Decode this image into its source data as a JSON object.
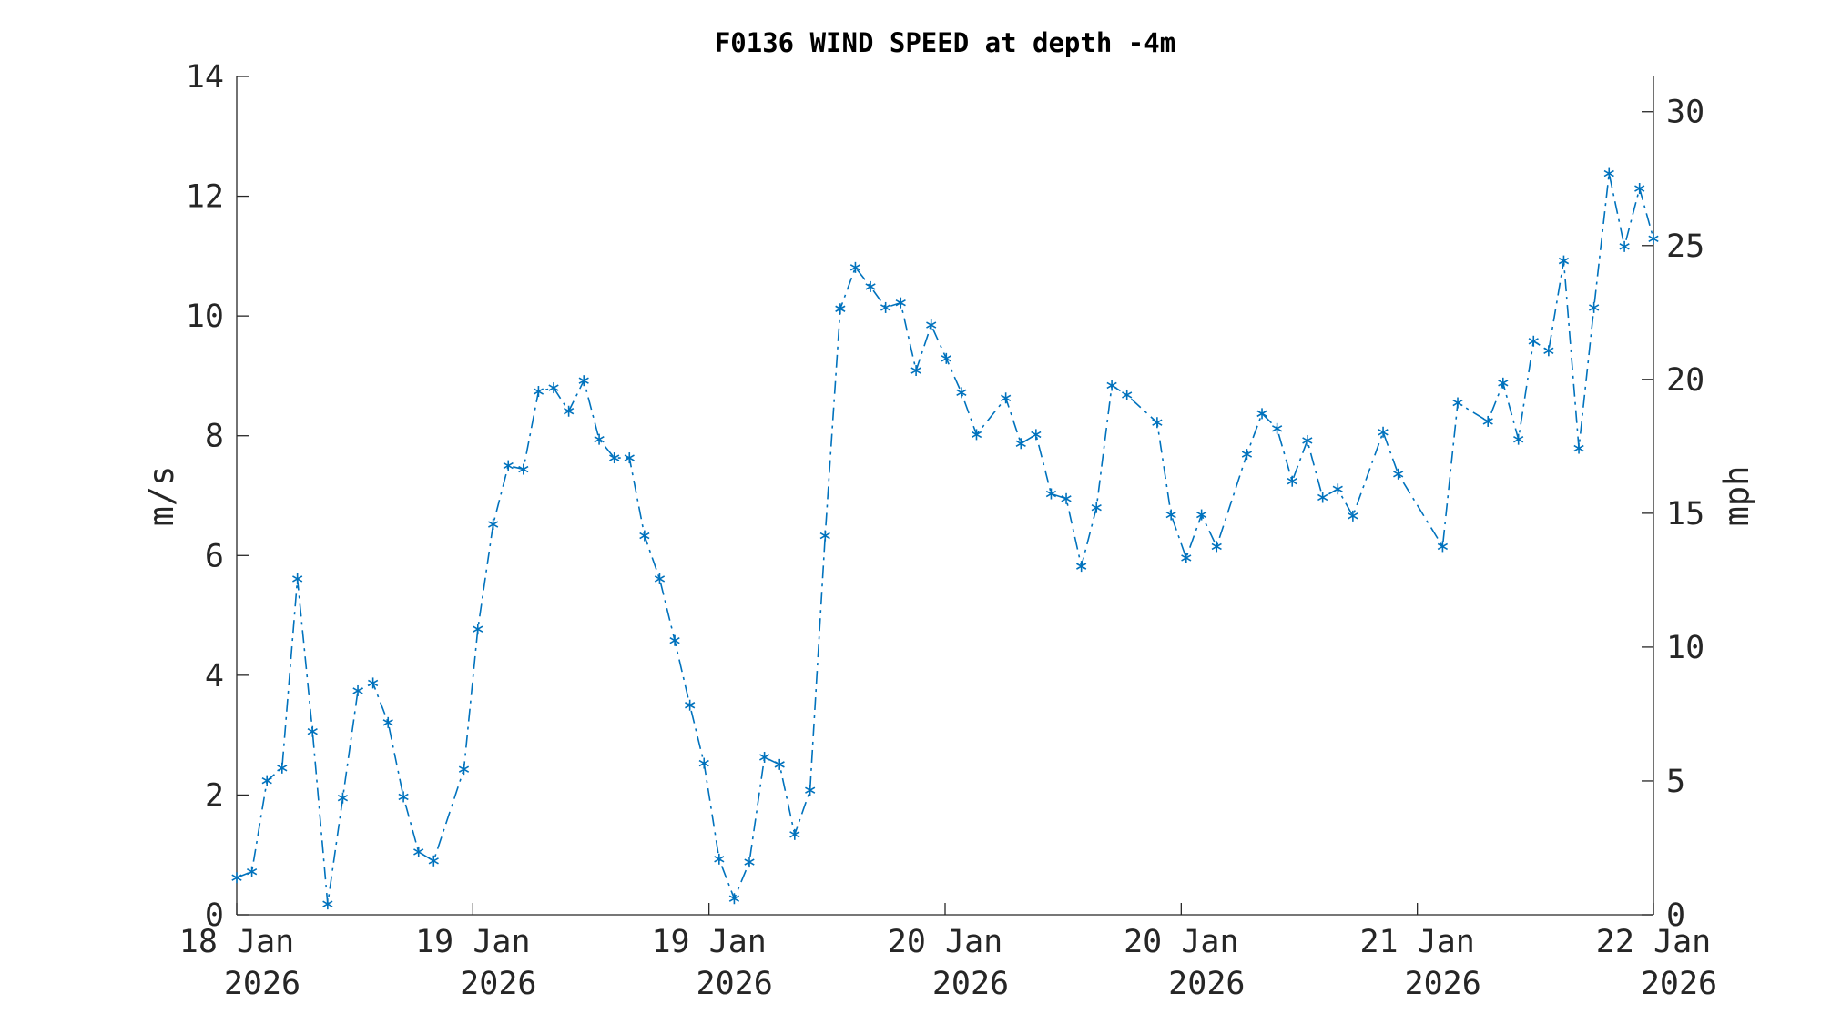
{
  "chart_data": {
    "type": "line",
    "title": "F0136 WIND SPEED at depth -4m",
    "ylabel": "m/s",
    "y2label": "mph",
    "xlim": [
      0,
      6
    ],
    "xticks": [
      {
        "value": 0,
        "label": [
          "18 Jan",
          "2026"
        ]
      },
      {
        "value": 1,
        "label": [
          "19 Jan",
          "2026"
        ]
      },
      {
        "value": 2,
        "label": [
          "19 Jan",
          "2026"
        ]
      },
      {
        "value": 3,
        "label": [
          "20 Jan",
          "2026"
        ]
      },
      {
        "value": 4,
        "label": [
          "20 Jan",
          "2026"
        ]
      },
      {
        "value": 5,
        "label": [
          "21 Jan",
          "2026"
        ]
      },
      {
        "value": 6,
        "label": [
          "22 Jan",
          "2026"
        ]
      }
    ],
    "ylim": [
      0,
      14
    ],
    "yticks": [
      0,
      2,
      4,
      6,
      8,
      10,
      12,
      14
    ],
    "y2lim": [
      0,
      31.317
    ],
    "y2ticks": [
      0,
      5,
      10,
      15,
      20,
      25,
      30
    ],
    "marker": "*",
    "line_style": "dashdot",
    "series": [
      {
        "color": "#0072bd",
        "x": [
          0,
          0.064,
          0.128,
          0.192,
          0.257,
          0.321,
          0.385,
          0.449,
          0.513,
          0.577,
          0.641,
          0.706,
          0.77,
          0.834,
          0.962,
          1.021,
          1.086,
          1.15,
          1.214,
          1.278,
          1.342,
          1.406,
          1.47,
          1.535,
          1.599,
          1.663,
          1.727,
          1.791,
          1.855,
          1.919,
          1.979,
          2.043,
          2.107,
          2.171,
          2.235,
          2.299,
          2.363,
          2.428,
          2.492,
          2.556,
          2.62,
          2.684,
          2.748,
          2.812,
          2.877,
          2.941,
          3.005,
          3.069,
          3.133,
          3.257,
          3.321,
          3.385,
          3.449,
          3.513,
          3.577,
          3.641,
          3.706,
          3.77,
          3.898,
          3.957,
          4.021,
          4.086,
          4.15,
          4.278,
          4.342,
          4.406,
          4.47,
          4.534,
          4.599,
          4.663,
          4.727,
          4.855,
          4.919,
          5.107,
          5.171,
          5.299,
          5.363,
          5.428,
          5.492,
          5.556,
          5.62,
          5.684,
          5.748,
          5.812,
          5.877,
          5.941,
          6
        ],
        "values": [
          0.62,
          0.72,
          2.24,
          2.45,
          5.61,
          3.06,
          0.18,
          1.95,
          3.74,
          3.87,
          3.21,
          1.97,
          1.05,
          0.9,
          2.43,
          4.77,
          6.52,
          7.5,
          7.44,
          8.74,
          8.8,
          8.41,
          8.92,
          7.94,
          7.63,
          7.63,
          6.33,
          5.61,
          4.58,
          3.5,
          2.53,
          0.93,
          0.27,
          0.88,
          2.63,
          2.51,
          1.34,
          2.08,
          6.33,
          10.12,
          10.81,
          10.49,
          10.14,
          10.22,
          9.09,
          9.85,
          9.29,
          8.72,
          8.02,
          8.63,
          7.87,
          8.02,
          7.03,
          6.95,
          5.82,
          6.8,
          8.84,
          8.68,
          8.22,
          6.68,
          5.96,
          6.68,
          6.15,
          7.69,
          8.37,
          8.12,
          7.24,
          7.92,
          6.97,
          7.11,
          6.66,
          8.06,
          7.36,
          6.15,
          8.55,
          8.24,
          8.88,
          7.94,
          9.58,
          9.42,
          10.92,
          7.79,
          10.14,
          12.38,
          11.16,
          12.13,
          11.29
        ]
      }
    ]
  }
}
